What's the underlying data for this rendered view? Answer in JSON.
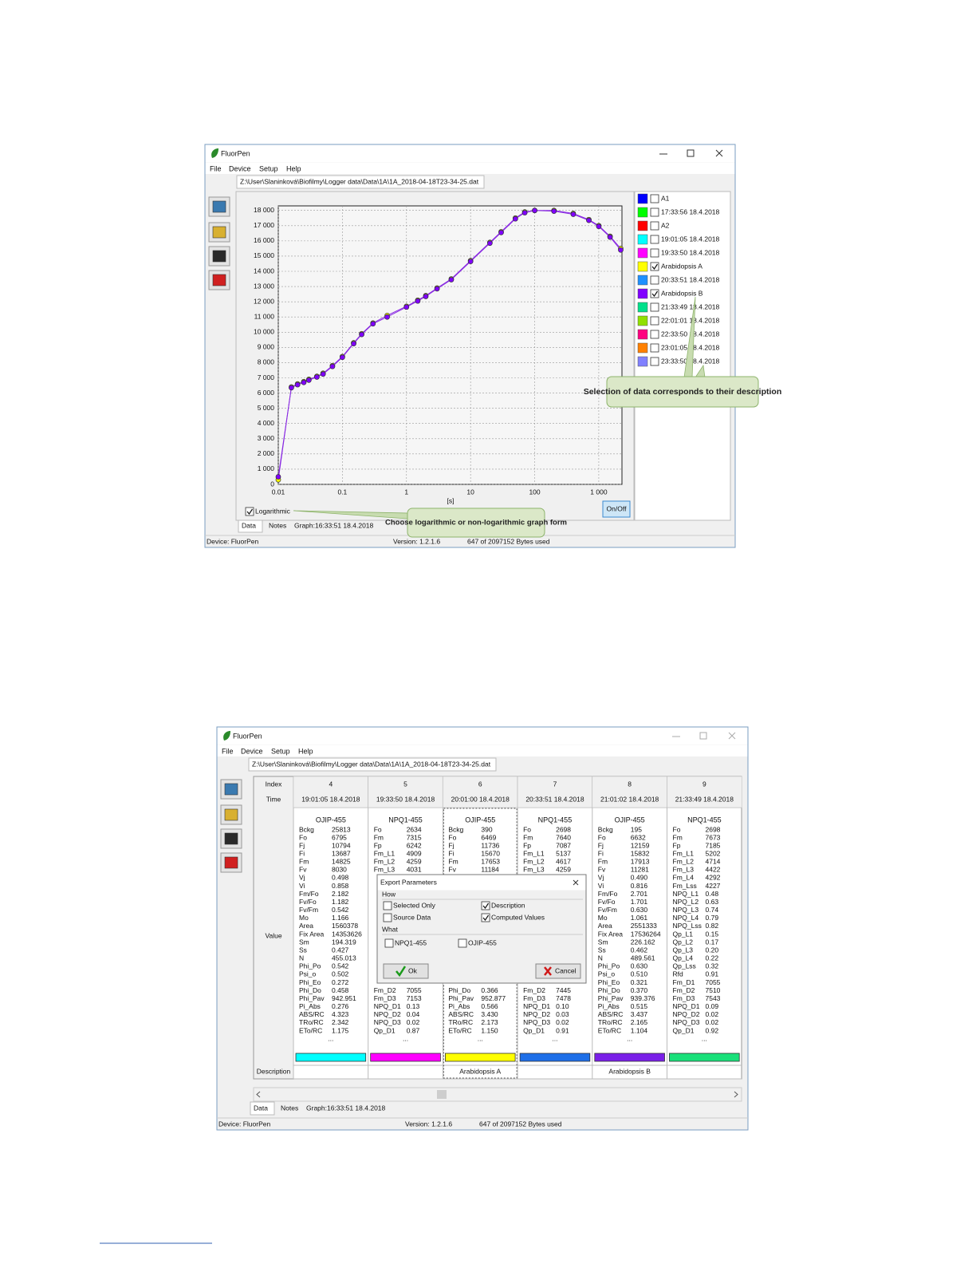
{
  "chart_data": {
    "type": "line",
    "xlabel": "[s]",
    "xscale": "log",
    "xlim": [
      0.01,
      2300
    ],
    "ylim": [
      0,
      18300
    ],
    "xticks": [
      0.01,
      0.1,
      1,
      10,
      100,
      {
        "value": 1000,
        "label": "1 000"
      }
    ],
    "yticks": [
      0,
      {
        "value": 1000,
        "label": "1 000"
      },
      {
        "value": 2000,
        "label": "2 000"
      },
      {
        "value": 3000,
        "label": "3 000"
      },
      {
        "value": 4000,
        "label": "4 000"
      },
      {
        "value": 5000,
        "label": "5 000"
      },
      {
        "value": 6000,
        "label": "6 000"
      },
      {
        "value": 7000,
        "label": "7 000"
      },
      {
        "value": 8000,
        "label": "8 000"
      },
      {
        "value": 9000,
        "label": "9 000"
      },
      {
        "value": 10000,
        "label": "10 000"
      },
      {
        "value": 11000,
        "label": "11 000"
      },
      {
        "value": 12000,
        "label": "12 000"
      },
      {
        "value": 13000,
        "label": "13 000"
      },
      {
        "value": 14000,
        "label": "14 000"
      },
      {
        "value": 15000,
        "label": "15 000"
      },
      {
        "value": 16000,
        "label": "16 000"
      },
      {
        "value": 17000,
        "label": "17 000"
      },
      {
        "value": 18000,
        "label": "18 000"
      }
    ],
    "grid": true,
    "series": [
      {
        "name": "A1",
        "color": "#0000ff",
        "checked": false
      },
      {
        "name": "17:33:56  18.4.2018",
        "color": "#00ff00",
        "checked": false
      },
      {
        "name": "A2",
        "color": "#ff0000",
        "checked": false
      },
      {
        "name": "19:01:05  18.4.2018",
        "color": "#00ffff",
        "checked": false
      },
      {
        "name": "19:33:50  18.4.2018",
        "color": "#ff00ff",
        "checked": false
      },
      {
        "name": "Arabidopsis A",
        "color": "#ffff00",
        "checked": true,
        "x": [
          0.01,
          0.016,
          0.02,
          0.025,
          0.03,
          0.04,
          0.05,
          0.07,
          0.1,
          0.15,
          0.2,
          0.3,
          0.5,
          1,
          1.5,
          2,
          3,
          5,
          10,
          20,
          30,
          50,
          70,
          100,
          200,
          400,
          700,
          1000,
          1500,
          2200
        ],
        "values": [
          300,
          6400,
          6600,
          6750,
          6900,
          7100,
          7300,
          7800,
          8400,
          9300,
          9900,
          10600,
          11100,
          11700,
          12100,
          12400,
          12900,
          13500,
          14700,
          15900,
          16600,
          17500,
          17900,
          18000,
          18000,
          17800,
          17400,
          17000,
          16300,
          15500
        ]
      },
      {
        "name": "20:33:51  18.4.2018",
        "color": "#1e90ff",
        "checked": false
      },
      {
        "name": "Arabidopsis B",
        "color": "#8000ff",
        "checked": true,
        "x": [
          0.01,
          0.016,
          0.02,
          0.025,
          0.03,
          0.04,
          0.05,
          0.07,
          0.1,
          0.15,
          0.2,
          0.3,
          0.5,
          1,
          1.5,
          2,
          3,
          5,
          10,
          20,
          30,
          50,
          70,
          100,
          200,
          400,
          700,
          1000,
          1500,
          2200
        ],
        "values": [
          500,
          6350,
          6550,
          6700,
          6850,
          7050,
          7250,
          7750,
          8350,
          9250,
          9850,
          10550,
          11000,
          11650,
          12050,
          12350,
          12850,
          13450,
          14650,
          15850,
          16550,
          17450,
          17850,
          18000,
          17950,
          17750,
          17350,
          16950,
          16250,
          15400
        ]
      },
      {
        "name": "21:33:49  18.4.2018",
        "color": "#00e08a",
        "checked": false
      },
      {
        "name": "22:01:01  18.4.2018",
        "color": "#90e000",
        "checked": false
      },
      {
        "name": "22:33:50  18.4.2018",
        "color": "#ff0080",
        "checked": false
      },
      {
        "name": "23:01:05  18.4.2018",
        "color": "#ff8000",
        "checked": false
      },
      {
        "name": "23:33:50  18.4.2018",
        "color": "#8080ff",
        "checked": false
      }
    ]
  },
  "window_top": {
    "title": "FluorPen",
    "menu": [
      "File",
      "Device",
      "Setup",
      "Help"
    ],
    "file_tab": "Z:\\User\\Slaninková\\Biofilmy\\Logger data\\Data\\1A\\1A_2018-04-18T23-34-25.dat",
    "logarithmic": {
      "label": "Logarithmic",
      "checked": true
    },
    "on_off": "On/Off",
    "callouts": [
      "Selection of data corresponds to their description",
      "Choose logarithmic or non-logarithmic graph form"
    ],
    "tabs": [
      "Data",
      "Notes",
      "Graph:16:33:51  18.4.2018"
    ],
    "status": {
      "device": "Device: FluorPen",
      "version": "Version: 1.2.1.6",
      "memory": "647 of 2097152 Bytes used"
    }
  },
  "window_bottom": {
    "title": "FluorPen",
    "menu": [
      "File",
      "Device",
      "Setup",
      "Help"
    ],
    "file_tab": "Z:\\User\\Slaninková\\Biofilmy\\Logger data\\Data\\1A\\1A_2018-04-18T23-34-25.dat",
    "tabs": [
      "Data",
      "Notes",
      "Graph:16:33:51  18.4.2018"
    ],
    "status": {
      "device": "Device: FluorPen",
      "version": "Version: 1.2.1.6",
      "memory": "647 of 2097152 Bytes used"
    },
    "table": {
      "row_labels": {
        "index": "Index",
        "time": "Time",
        "value": "Value",
        "description": "Description"
      },
      "columns": [
        {
          "index": 4,
          "time": "19:01:05  18.4.2018",
          "protocol": "OJIP-455",
          "color": "#00ffff",
          "more": "...",
          "params": [
            [
              "Bckg",
              "25813"
            ],
            [
              "Fo",
              "6795"
            ],
            [
              "Fj",
              "10794"
            ],
            [
              "Fi",
              "13687"
            ],
            [
              "Fm",
              "14825"
            ],
            [
              "Fv",
              "8030"
            ],
            [
              "Vj",
              "0.498"
            ],
            [
              "Vi",
              "0.858"
            ],
            [
              "Fm/Fo",
              "2.182"
            ],
            [
              "Fv/Fo",
              "1.182"
            ],
            [
              "Fv/Fm",
              "0.542"
            ],
            [
              "Mo",
              "1.166"
            ],
            [
              "Area",
              "1560378"
            ],
            [
              "Fix Area",
              "14353626"
            ],
            [
              "Sm",
              "194.319"
            ],
            [
              "Ss",
              "0.427"
            ],
            [
              "N",
              "455.013"
            ],
            [
              "Phi_Po",
              "0.542"
            ],
            [
              "Psi_o",
              "0.502"
            ],
            [
              "Phi_Eo",
              "0.272"
            ],
            [
              "Phi_Do",
              "0.458"
            ],
            [
              "Phi_Pav",
              "942.951"
            ],
            [
              "Pi_Abs",
              "0.276"
            ],
            [
              "ABS/RC",
              "4.323"
            ],
            [
              "TRo/RC",
              "2.342"
            ],
            [
              "ETo/RC",
              "1.175"
            ]
          ]
        },
        {
          "index": 5,
          "time": "19:33:50  18.4.2018",
          "protocol": "NPQ1-455",
          "color": "#ff00ff",
          "more": "...",
          "params_top": [
            [
              "Fo",
              "2634"
            ],
            [
              "Fm",
              "7315"
            ],
            [
              "Fp",
              "6242"
            ],
            [
              "Fm_L1",
              "4909"
            ],
            [
              "Fm_L2",
              "4259"
            ],
            [
              "Fm_L3",
              "4031"
            ]
          ],
          "params_bottom": [
            [
              "Fm_D2",
              "7055"
            ],
            [
              "Fm_D3",
              "7153"
            ],
            [
              "NPQ_D1",
              "0.13"
            ],
            [
              "NPQ_D2",
              "0.04"
            ],
            [
              "NPQ_D3",
              "0.02"
            ],
            [
              "Qp_D1",
              "0.87"
            ]
          ]
        },
        {
          "index": 6,
          "time": "20:01:00  18.4.2018",
          "protocol": "OJIP-455",
          "color": "#ffff00",
          "more": "...",
          "description": "Arabidopsis A",
          "selected": true,
          "params_top": [
            [
              "Bckg",
              "390"
            ],
            [
              "Fo",
              "6469"
            ],
            [
              "Fj",
              "11736"
            ],
            [
              "Fi",
              "15670"
            ],
            [
              "Fm",
              "17653"
            ],
            [
              "Fv",
              "11184"
            ]
          ],
          "params_bottom": [
            [
              "Phi_Do",
              "0.366"
            ],
            [
              "Phi_Pav",
              "952.877"
            ],
            [
              "Pi_Abs",
              "0.566"
            ],
            [
              "ABS/RC",
              "3.430"
            ],
            [
              "TRo/RC",
              "2.173"
            ],
            [
              "ETo/RC",
              "1.150"
            ]
          ]
        },
        {
          "index": 7,
          "time": "20:33:51  18.4.2018",
          "protocol": "NPQ1-455",
          "color": "#1e6fe8",
          "more": "...",
          "params_top": [
            [
              "Fo",
              "2698"
            ],
            [
              "Fm",
              "7640"
            ],
            [
              "Fp",
              "7087"
            ],
            [
              "Fm_L1",
              "5137"
            ],
            [
              "Fm_L2",
              "4617"
            ],
            [
              "Fm_L3",
              "4259"
            ]
          ],
          "params_bottom": [
            [
              "Fm_D2",
              "7445"
            ],
            [
              "Fm_D3",
              "7478"
            ],
            [
              "NPQ_D1",
              "0.10"
            ],
            [
              "NPQ_D2",
              "0.03"
            ],
            [
              "NPQ_D3",
              "0.02"
            ],
            [
              "Qp_D1",
              "0.91"
            ]
          ]
        },
        {
          "index": 8,
          "time": "21:01:02  18.4.2018",
          "protocol": "OJIP-455",
          "color": "#7a1fe8",
          "more": "...",
          "description": "Arabidopsis B",
          "params": [
            [
              "Bckg",
              "195"
            ],
            [
              "Fo",
              "6632"
            ],
            [
              "Fj",
              "12159"
            ],
            [
              "Fi",
              "15832"
            ],
            [
              "Fm",
              "17913"
            ],
            [
              "Fv",
              "11281"
            ],
            [
              "Vj",
              "0.490"
            ],
            [
              "Vi",
              "0.816"
            ],
            [
              "Fm/Fo",
              "2.701"
            ],
            [
              "Fv/Fo",
              "1.701"
            ],
            [
              "Fv/Fm",
              "0.630"
            ],
            [
              "Mo",
              "1.061"
            ],
            [
              "Area",
              "2551333"
            ],
            [
              "Fix Area",
              "17536264"
            ],
            [
              "Sm",
              "226.162"
            ],
            [
              "Ss",
              "0.462"
            ],
            [
              "N",
              "489.561"
            ],
            [
              "Phi_Po",
              "0.630"
            ],
            [
              "Psi_o",
              "0.510"
            ],
            [
              "Phi_Eo",
              "0.321"
            ],
            [
              "Phi_Do",
              "0.370"
            ],
            [
              "Phi_Pav",
              "939.376"
            ],
            [
              "Pi_Abs",
              "0.515"
            ],
            [
              "ABS/RC",
              "3.437"
            ],
            [
              "TRo/RC",
              "2.165"
            ],
            [
              "ETo/RC",
              "1.104"
            ]
          ]
        },
        {
          "index": 9,
          "time": "21:33:49  18.4.2018",
          "protocol": "NPQ1-455",
          "color": "#19e07a",
          "more": "...",
          "params": [
            [
              "Fo",
              "2698"
            ],
            [
              "Fm",
              "7673"
            ],
            [
              "Fp",
              "7185"
            ],
            [
              "Fm_L1",
              "5202"
            ],
            [
              "Fm_L2",
              "4714"
            ],
            [
              "Fm_L3",
              "4422"
            ],
            [
              "Fm_L4",
              "4292"
            ],
            [
              "Fm_Lss",
              "4227"
            ],
            [
              "NPQ_L1",
              "0.48"
            ],
            [
              "NPQ_L2",
              "0.63"
            ],
            [
              "NPQ_L3",
              "0.74"
            ],
            [
              "NPQ_L4",
              "0.79"
            ],
            [
              "NPQ_Lss",
              "0.82"
            ],
            [
              "Qp_L1",
              "0.15"
            ],
            [
              "Qp_L2",
              "0.17"
            ],
            [
              "Qp_L3",
              "0.20"
            ],
            [
              "Qp_L4",
              "0.22"
            ],
            [
              "Qp_Lss",
              "0.32"
            ],
            [
              "Rfd",
              "0.91"
            ],
            [
              "Fm_D1",
              "7055"
            ],
            [
              "Fm_D2",
              "7510"
            ],
            [
              "Fm_D3",
              "7543"
            ],
            [
              "NPQ_D1",
              "0.09"
            ],
            [
              "NPQ_D2",
              "0.02"
            ],
            [
              "NPQ_D3",
              "0.02"
            ],
            [
              "Qp_D1",
              "0.92"
            ]
          ]
        }
      ]
    },
    "dialog": {
      "title": "Export Parameters",
      "how_label": "How",
      "how_options": [
        {
          "label": "Selected Only",
          "checked": false
        },
        {
          "label": "Description",
          "checked": true
        },
        {
          "label": "Source Data",
          "checked": false
        },
        {
          "label": "Computed Values",
          "checked": true
        }
      ],
      "what_label": "What",
      "what_options": [
        {
          "label": "NPQ1-455",
          "checked": false
        },
        {
          "label": "OJIP-455",
          "checked": false
        }
      ],
      "ok": "Ok",
      "cancel": "Cancel"
    }
  }
}
